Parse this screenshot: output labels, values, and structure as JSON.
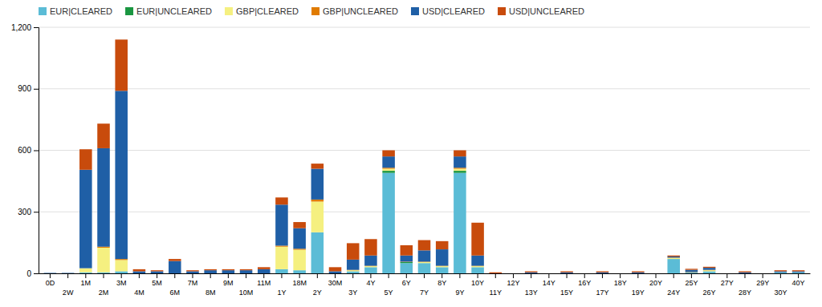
{
  "chart_data": {
    "type": "bar",
    "stacked": true,
    "grid": true,
    "legend": "top-left",
    "categories": [
      "0D",
      "2W",
      "1M",
      "2M",
      "3M",
      "4M",
      "5M",
      "6M",
      "7M",
      "8M",
      "9M",
      "10M",
      "11M",
      "1Y",
      "18M",
      "2Y",
      "30M",
      "3Y",
      "4Y",
      "5Y",
      "6Y",
      "7Y",
      "8Y",
      "9Y",
      "10Y",
      "11Y",
      "12Y",
      "13Y",
      "14Y",
      "15Y",
      "16Y",
      "17Y",
      "18Y",
      "19Y",
      "20Y",
      "24Y",
      "25Y",
      "26Y",
      "27Y",
      "28Y",
      "29Y",
      "30Y",
      "40Y"
    ],
    "series": [
      {
        "name": "EUR|CLEARED",
        "color": "#5BBCD6",
        "values": [
          0,
          0,
          5,
          5,
          10,
          0,
          0,
          0,
          0,
          0,
          0,
          0,
          0,
          20,
          15,
          200,
          0,
          10,
          30,
          490,
          50,
          50,
          30,
          490,
          30,
          0,
          0,
          0,
          0,
          0,
          0,
          0,
          0,
          0,
          0,
          70,
          5,
          10,
          0,
          0,
          0,
          5,
          5
        ]
      },
      {
        "name": "EUR|UNCLEARED",
        "color": "#1A9641",
        "values": [
          0,
          0,
          0,
          0,
          0,
          0,
          0,
          0,
          0,
          0,
          0,
          0,
          0,
          0,
          0,
          0,
          0,
          0,
          0,
          10,
          5,
          0,
          0,
          10,
          0,
          0,
          0,
          0,
          0,
          0,
          0,
          0,
          0,
          0,
          0,
          0,
          0,
          0,
          0,
          0,
          0,
          0,
          0
        ]
      },
      {
        "name": "GBP|CLEARED",
        "color": "#F5F080",
        "values": [
          0,
          0,
          20,
          120,
          55,
          0,
          0,
          0,
          0,
          0,
          0,
          0,
          0,
          110,
          100,
          150,
          0,
          5,
          5,
          10,
          0,
          5,
          5,
          10,
          5,
          0,
          0,
          0,
          0,
          0,
          0,
          0,
          0,
          0,
          0,
          5,
          0,
          5,
          0,
          0,
          0,
          0,
          0
        ]
      },
      {
        "name": "GBP|UNCLEARED",
        "color": "#E07B00",
        "values": [
          0,
          0,
          0,
          5,
          5,
          0,
          0,
          0,
          0,
          0,
          0,
          0,
          0,
          5,
          5,
          10,
          0,
          2,
          2,
          5,
          2,
          2,
          2,
          5,
          2,
          0,
          0,
          0,
          0,
          0,
          0,
          0,
          0,
          0,
          0,
          2,
          2,
          2,
          0,
          0,
          0,
          0,
          0
        ]
      },
      {
        "name": "USD|CLEARED",
        "color": "#1F5FA6",
        "values": [
          2,
          2,
          480,
          480,
          820,
          10,
          10,
          60,
          10,
          15,
          15,
          15,
          20,
          200,
          100,
          150,
          10,
          50,
          50,
          55,
          30,
          55,
          80,
          55,
          50,
          0,
          0,
          5,
          0,
          5,
          0,
          5,
          0,
          5,
          0,
          5,
          10,
          10,
          0,
          5,
          0,
          5,
          5
        ]
      },
      {
        "name": "USD|UNCLEARED",
        "color": "#C84B0C",
        "values": [
          0,
          0,
          100,
          120,
          250,
          10,
          5,
          10,
          5,
          5,
          5,
          5,
          10,
          35,
          30,
          25,
          20,
          80,
          80,
          30,
          50,
          50,
          40,
          30,
          160,
          5,
          0,
          5,
          0,
          5,
          0,
          5,
          0,
          5,
          0,
          5,
          5,
          5,
          0,
          5,
          0,
          5,
          5
        ]
      }
    ],
    "ylim": [
      0,
      1200
    ],
    "yticks": [
      0,
      300,
      600,
      900,
      {
        "value": 1200,
        "label": "1,200"
      }
    ]
  }
}
